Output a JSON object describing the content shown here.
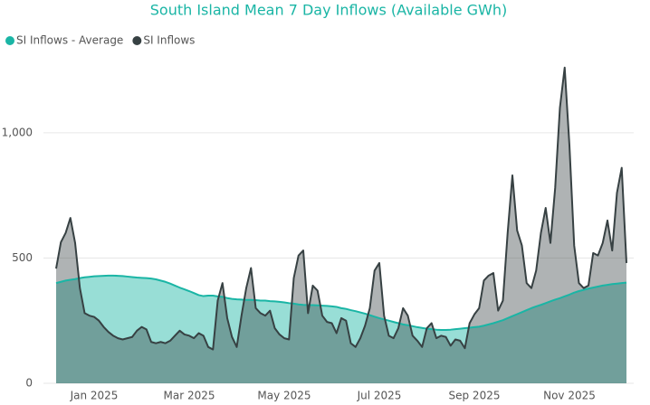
{
  "chart_data": {
    "type": "area",
    "title": "South Island Mean 7 Day Inflows (Available GWh)",
    "categories": [
      null,
      null,
      null,
      null,
      null,
      null,
      null,
      null,
      "Jan 2025",
      null,
      null,
      null,
      null,
      null,
      null,
      null,
      null,
      null,
      null,
      null,
      null,
      null,
      null,
      null,
      null,
      null,
      null,
      null,
      "Mar 2025",
      null,
      null,
      null,
      null,
      null,
      null,
      null,
      null,
      null,
      null,
      null,
      null,
      null,
      null,
      null,
      null,
      null,
      null,
      null,
      "May 2025",
      null,
      null,
      null,
      null,
      null,
      null,
      null,
      null,
      null,
      null,
      null,
      null,
      null,
      null,
      null,
      null,
      null,
      null,
      null,
      "Jul 2025",
      null,
      null,
      null,
      null,
      null,
      null,
      null,
      null,
      null,
      null,
      null,
      null,
      null,
      null,
      null,
      null,
      null,
      null,
      null,
      "Sep 2025",
      null,
      null,
      null,
      null,
      null,
      null,
      null,
      null,
      null,
      null,
      null,
      null,
      null,
      null,
      null,
      null,
      null,
      null,
      null,
      "Nov 2025",
      null,
      null,
      null,
      null,
      null,
      null,
      null,
      null,
      null,
      null,
      null,
      null
    ],
    "series": [
      {
        "name": "SI Inflows - Average",
        "color": "#1ab5a5",
        "values": [
          400,
          405,
          410,
          413,
          416,
          420,
          423,
          425,
          427,
          428,
          429,
          430,
          430,
          429,
          428,
          426,
          424,
          422,
          421,
          420,
          418,
          415,
          410,
          405,
          398,
          390,
          382,
          375,
          368,
          360,
          352,
          348,
          350,
          350,
          347,
          345,
          340,
          337,
          335,
          334,
          333,
          333,
          332,
          330,
          330,
          328,
          327,
          325,
          323,
          320,
          318,
          315,
          313,
          312,
          312,
          311,
          310,
          309,
          307,
          305,
          300,
          297,
          292,
          288,
          283,
          278,
          272,
          266,
          260,
          255,
          250,
          245,
          240,
          235,
          232,
          228,
          224,
          221,
          218,
          216,
          214,
          213,
          213,
          214,
          216,
          218,
          220,
          222,
          224,
          226,
          230,
          235,
          240,
          246,
          252,
          260,
          268,
          276,
          284,
          292,
          300,
          307,
          313,
          320,
          327,
          334,
          340,
          347,
          354,
          362,
          368,
          373,
          378,
          382,
          386,
          390,
          393,
          396,
          398,
          400,
          402
        ]
      },
      {
        "name": "SI Inflows",
        "color": "#374143",
        "values": [
          458,
          563,
          600,
          660,
          560,
          380,
          280,
          270,
          265,
          250,
          225,
          205,
          190,
          180,
          175,
          180,
          185,
          210,
          225,
          215,
          165,
          160,
          165,
          160,
          170,
          190,
          210,
          195,
          190,
          180,
          200,
          190,
          145,
          135,
          330,
          400,
          260,
          185,
          145,
          270,
          380,
          460,
          300,
          280,
          270,
          290,
          220,
          195,
          180,
          175,
          420,
          510,
          530,
          280,
          390,
          370,
          270,
          245,
          240,
          200,
          260,
          250,
          160,
          145,
          180,
          230,
          300,
          450,
          480,
          270,
          190,
          180,
          220,
          300,
          270,
          190,
          170,
          145,
          220,
          240,
          180,
          190,
          185,
          150,
          175,
          170,
          140,
          240,
          275,
          300,
          410,
          430,
          440,
          290,
          330,
          600,
          830,
          610,
          550,
          400,
          380,
          450,
          600,
          700,
          560,
          780,
          1100,
          1260,
          950,
          550,
          400,
          380,
          390,
          520,
          510,
          560,
          650,
          530,
          760,
          860,
          480
        ]
      }
    ],
    "ylim": [
      0,
      1400
    ],
    "yticks": [
      0,
      500,
      {
        "value": 1000,
        "label": "1,000"
      }
    ],
    "grid": true
  }
}
